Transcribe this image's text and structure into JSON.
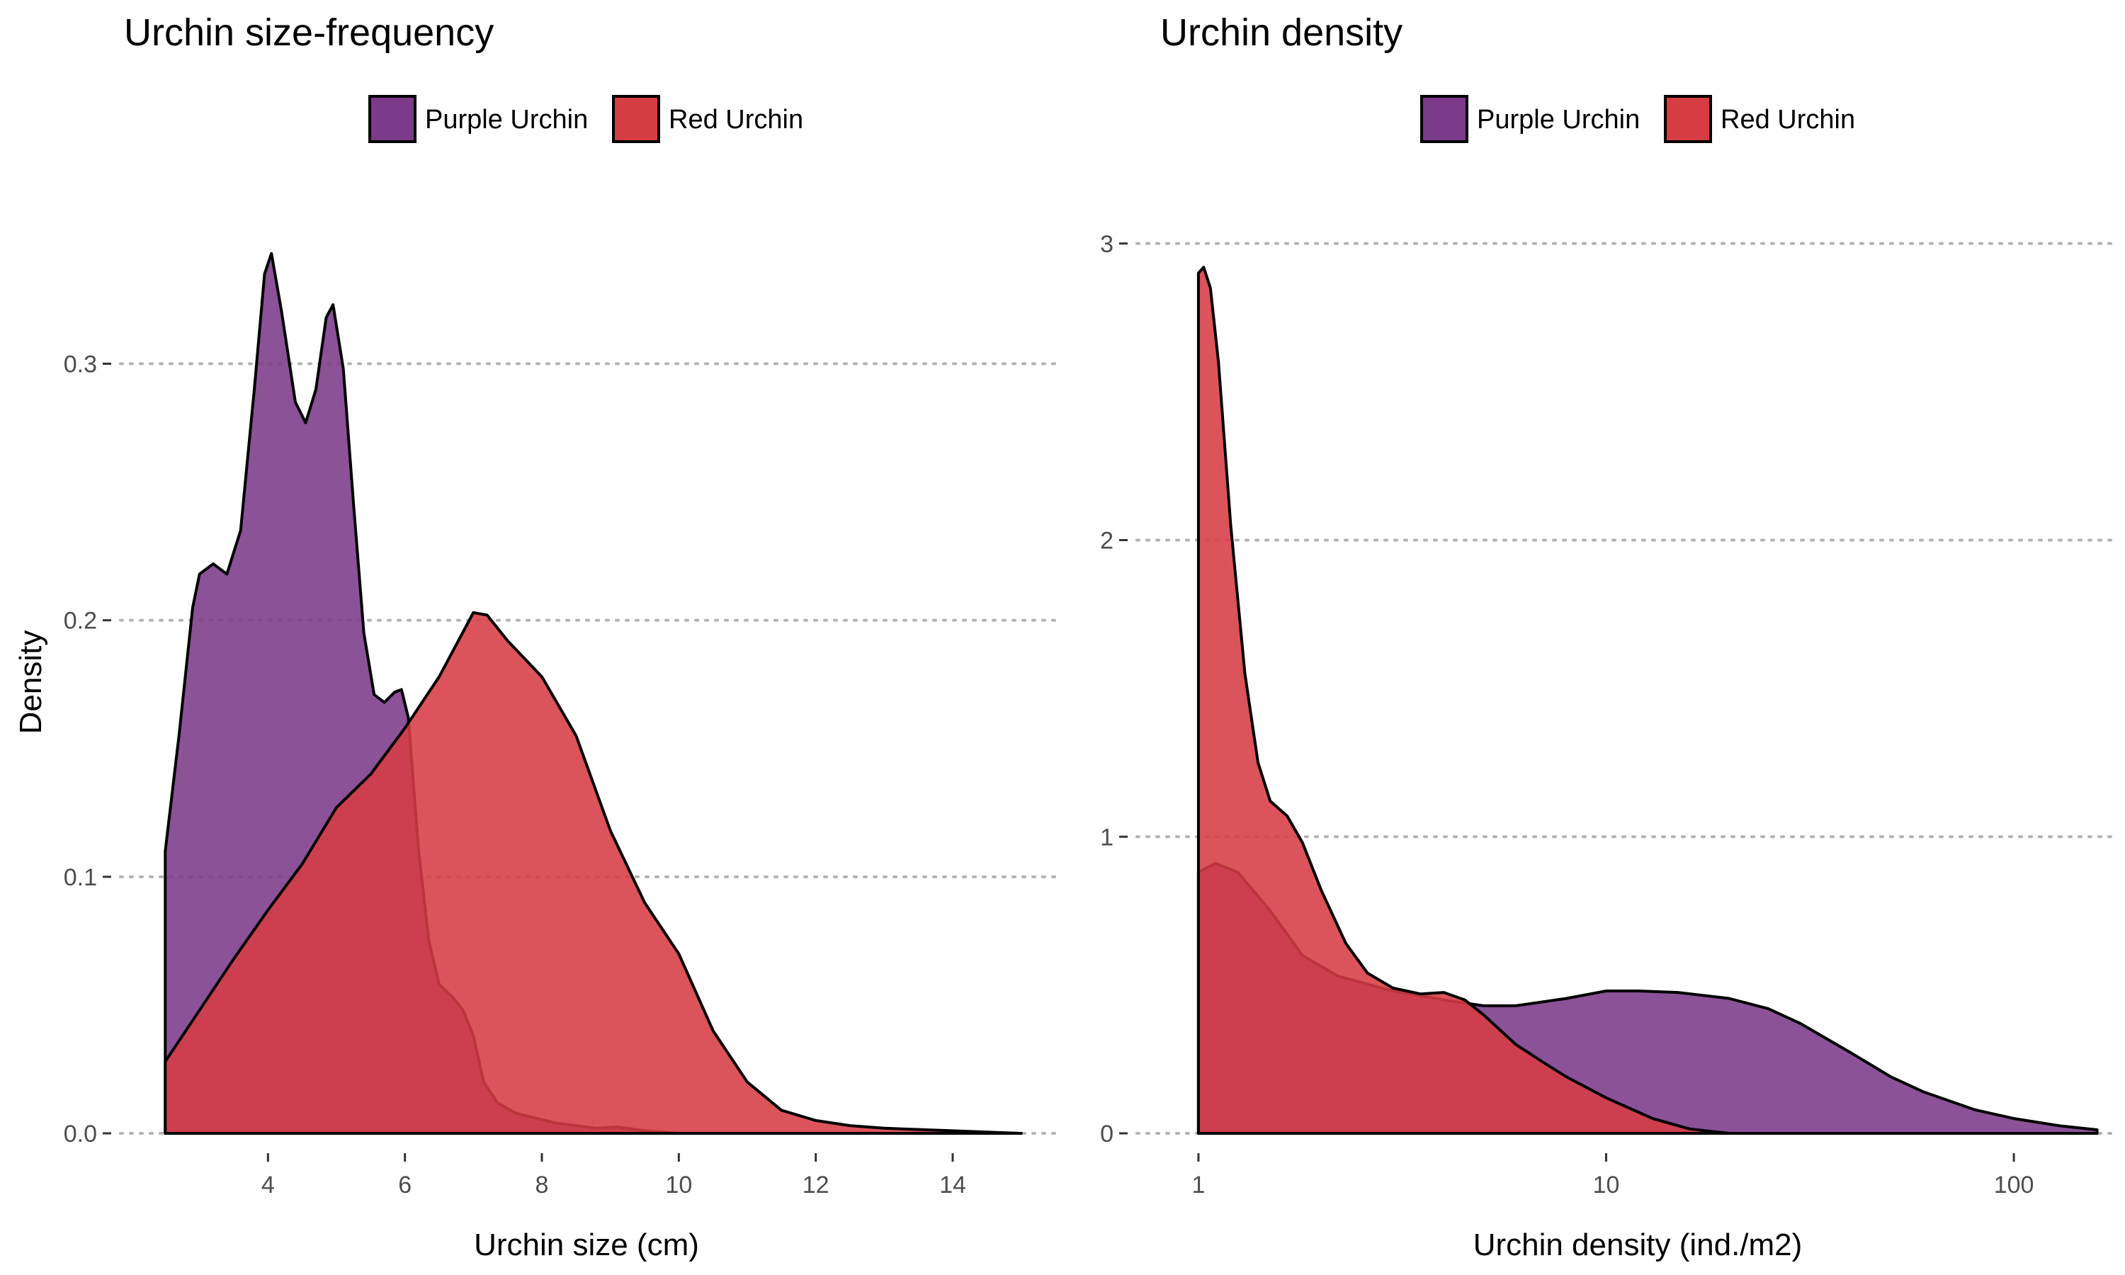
{
  "colors": {
    "purple": "#7b3a8a",
    "red": "#d63c44",
    "outline": "#000000",
    "grid": "#b3b3b3",
    "tick_text": "#4d4d4d"
  },
  "chart_data": [
    {
      "type": "area",
      "title": "Urchin size-frequency",
      "xlabel": "Urchin size (cm)",
      "ylabel": "Density",
      "x_scale": "linear",
      "xlim": [
        2.0,
        15.5
      ],
      "ylim": [
        0,
        0.37
      ],
      "xticks": [
        4,
        6,
        8,
        10,
        12,
        14
      ],
      "xtick_labels": [
        "4",
        "6",
        "8",
        "10",
        "12",
        "14"
      ],
      "yticks": [
        0.0,
        0.1,
        0.2,
        0.3
      ],
      "ytick_labels": [
        "0.0",
        "0.1",
        "0.2",
        "0.3"
      ],
      "grid": "horizontal-dotted",
      "legend_position": "top",
      "legend": [
        "Purple Urchin",
        "Red Urchin"
      ],
      "series": [
        {
          "name": "Purple Urchin",
          "color_key": "purple",
          "points": [
            [
              2.5,
              0.11
            ],
            [
              2.7,
              0.155
            ],
            [
              2.9,
              0.205
            ],
            [
              3.0,
              0.218
            ],
            [
              3.2,
              0.222
            ],
            [
              3.4,
              0.218
            ],
            [
              3.6,
              0.235
            ],
            [
              3.8,
              0.29
            ],
            [
              3.95,
              0.335
            ],
            [
              4.05,
              0.343
            ],
            [
              4.2,
              0.32
            ],
            [
              4.4,
              0.285
            ],
            [
              4.55,
              0.277
            ],
            [
              4.7,
              0.29
            ],
            [
              4.85,
              0.318
            ],
            [
              4.95,
              0.323
            ],
            [
              5.1,
              0.298
            ],
            [
              5.25,
              0.245
            ],
            [
              5.4,
              0.195
            ],
            [
              5.55,
              0.171
            ],
            [
              5.7,
              0.168
            ],
            [
              5.85,
              0.172
            ],
            [
              5.95,
              0.173
            ],
            [
              6.05,
              0.162
            ],
            [
              6.2,
              0.11
            ],
            [
              6.35,
              0.075
            ],
            [
              6.5,
              0.058
            ],
            [
              6.7,
              0.053
            ],
            [
              6.85,
              0.048
            ],
            [
              7.0,
              0.038
            ],
            [
              7.15,
              0.02
            ],
            [
              7.35,
              0.012
            ],
            [
              7.6,
              0.008
            ],
            [
              7.9,
              0.006
            ],
            [
              8.2,
              0.004
            ],
            [
              8.5,
              0.003
            ],
            [
              8.8,
              0.002
            ],
            [
              9.1,
              0.0025
            ],
            [
              9.5,
              0.001
            ],
            [
              10.0,
              0.0
            ],
            [
              15.0,
              0.0
            ]
          ]
        },
        {
          "name": "Red Urchin",
          "color_key": "red",
          "points": [
            [
              2.5,
              0.028
            ],
            [
              3.0,
              0.048
            ],
            [
              3.5,
              0.068
            ],
            [
              4.0,
              0.087
            ],
            [
              4.5,
              0.105
            ],
            [
              5.0,
              0.127
            ],
            [
              5.5,
              0.14
            ],
            [
              6.0,
              0.158
            ],
            [
              6.5,
              0.178
            ],
            [
              7.0,
              0.203
            ],
            [
              7.2,
              0.202
            ],
            [
              7.5,
              0.192
            ],
            [
              8.0,
              0.178
            ],
            [
              8.5,
              0.155
            ],
            [
              9.0,
              0.118
            ],
            [
              9.5,
              0.09
            ],
            [
              10.0,
              0.07
            ],
            [
              10.5,
              0.04
            ],
            [
              11.0,
              0.02
            ],
            [
              11.5,
              0.009
            ],
            [
              12.0,
              0.005
            ],
            [
              12.5,
              0.003
            ],
            [
              13.0,
              0.002
            ],
            [
              14.0,
              0.001
            ],
            [
              15.0,
              0.0
            ]
          ]
        }
      ]
    },
    {
      "type": "area",
      "title": "Urchin density",
      "xlabel": "Urchin density (ind./m2)",
      "ylabel": "",
      "x_scale": "log10",
      "xlim": [
        0.75,
        180
      ],
      "ylim": [
        0,
        3.2
      ],
      "xticks": [
        1,
        10,
        100
      ],
      "xtick_labels": [
        "1",
        "10",
        "100"
      ],
      "yticks": [
        0,
        1,
        2,
        3
      ],
      "ytick_labels": [
        "0",
        "1",
        "2",
        "3"
      ],
      "grid": "horizontal-dotted",
      "legend_position": "top",
      "legend": [
        "Purple Urchin",
        "Red Urchin"
      ],
      "series": [
        {
          "name": "Purple Urchin",
          "color_key": "purple",
          "points": [
            [
              1.0,
              0.88
            ],
            [
              1.1,
              0.91
            ],
            [
              1.25,
              0.88
            ],
            [
              1.5,
              0.75
            ],
            [
              1.8,
              0.6
            ],
            [
              2.2,
              0.53
            ],
            [
              3.0,
              0.48
            ],
            [
              4.0,
              0.45
            ],
            [
              5.0,
              0.43
            ],
            [
              6.0,
              0.43
            ],
            [
              8.0,
              0.455
            ],
            [
              10.0,
              0.48
            ],
            [
              12.0,
              0.48
            ],
            [
              15.0,
              0.475
            ],
            [
              20.0,
              0.455
            ],
            [
              25.0,
              0.42
            ],
            [
              30.0,
              0.37
            ],
            [
              40.0,
              0.27
            ],
            [
              50.0,
              0.19
            ],
            [
              60.0,
              0.14
            ],
            [
              80.0,
              0.08
            ],
            [
              100.0,
              0.05
            ],
            [
              130.0,
              0.025
            ],
            [
              160.0,
              0.012
            ]
          ]
        },
        {
          "name": "Red Urchin",
          "color_key": "red",
          "points": [
            [
              1.0,
              2.9
            ],
            [
              1.03,
              2.92
            ],
            [
              1.07,
              2.85
            ],
            [
              1.12,
              2.6
            ],
            [
              1.2,
              2.05
            ],
            [
              1.3,
              1.55
            ],
            [
              1.4,
              1.25
            ],
            [
              1.5,
              1.12
            ],
            [
              1.65,
              1.07
            ],
            [
              1.8,
              0.98
            ],
            [
              2.0,
              0.82
            ],
            [
              2.3,
              0.64
            ],
            [
              2.6,
              0.54
            ],
            [
              3.0,
              0.49
            ],
            [
              3.5,
              0.47
            ],
            [
              4.0,
              0.475
            ],
            [
              4.5,
              0.45
            ],
            [
              5.0,
              0.4
            ],
            [
              6.0,
              0.3
            ],
            [
              7.0,
              0.24
            ],
            [
              8.0,
              0.19
            ],
            [
              10.0,
              0.12
            ],
            [
              13.0,
              0.05
            ],
            [
              16.0,
              0.015
            ],
            [
              20.0,
              0.0
            ],
            [
              160.0,
              0.0
            ]
          ]
        }
      ]
    }
  ]
}
